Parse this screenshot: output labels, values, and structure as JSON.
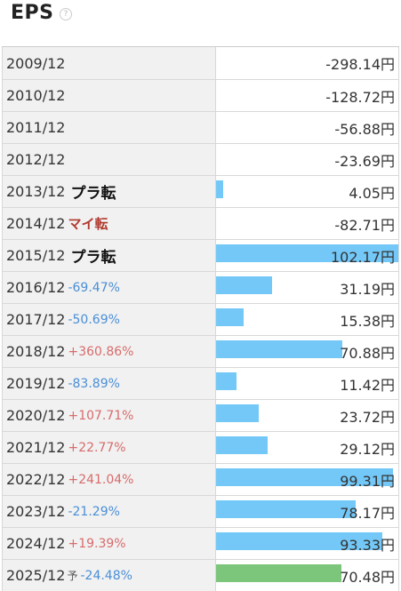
{
  "header": {
    "title": "EPS",
    "help": "?"
  },
  "rows": [
    {
      "year": "2009/12",
      "badge": "",
      "badge_type": "",
      "change": "",
      "change_type": "",
      "forecast": "",
      "value": "-298.14円",
      "eps": -298.14,
      "is_forecast": false
    },
    {
      "year": "2010/12",
      "badge": "",
      "badge_type": "",
      "change": "",
      "change_type": "",
      "forecast": "",
      "value": "-128.72円",
      "eps": -128.72,
      "is_forecast": false
    },
    {
      "year": "2011/12",
      "badge": "",
      "badge_type": "",
      "change": "",
      "change_type": "",
      "forecast": "",
      "value": "-56.88円",
      "eps": -56.88,
      "is_forecast": false
    },
    {
      "year": "2012/12",
      "badge": "",
      "badge_type": "",
      "change": "",
      "change_type": "",
      "forecast": "",
      "value": "-23.69円",
      "eps": -23.69,
      "is_forecast": false
    },
    {
      "year": "2013/12",
      "badge": "プラ転",
      "badge_type": "plus",
      "change": "",
      "change_type": "",
      "forecast": "",
      "value": "4.05円",
      "eps": 4.05,
      "is_forecast": false
    },
    {
      "year": "2014/12",
      "badge": "マイ転",
      "badge_type": "minus",
      "change": "",
      "change_type": "",
      "forecast": "",
      "value": "-82.71円",
      "eps": -82.71,
      "is_forecast": false
    },
    {
      "year": "2015/12",
      "badge": "プラ転",
      "badge_type": "plus",
      "change": "",
      "change_type": "",
      "forecast": "",
      "value": "102.17円",
      "eps": 102.17,
      "is_forecast": false
    },
    {
      "year": "2016/12",
      "badge": "",
      "badge_type": "",
      "change": "-69.47%",
      "change_type": "neg",
      "forecast": "",
      "value": "31.19円",
      "eps": 31.19,
      "is_forecast": false
    },
    {
      "year": "2017/12",
      "badge": "",
      "badge_type": "",
      "change": "-50.69%",
      "change_type": "neg",
      "forecast": "",
      "value": "15.38円",
      "eps": 15.38,
      "is_forecast": false
    },
    {
      "year": "2018/12",
      "badge": "",
      "badge_type": "",
      "change": "+360.86%",
      "change_type": "pos",
      "forecast": "",
      "value": "70.88円",
      "eps": 70.88,
      "is_forecast": false
    },
    {
      "year": "2019/12",
      "badge": "",
      "badge_type": "",
      "change": "-83.89%",
      "change_type": "neg",
      "forecast": "",
      "value": "11.42円",
      "eps": 11.42,
      "is_forecast": false
    },
    {
      "year": "2020/12",
      "badge": "",
      "badge_type": "",
      "change": "+107.71%",
      "change_type": "pos",
      "forecast": "",
      "value": "23.72円",
      "eps": 23.72,
      "is_forecast": false
    },
    {
      "year": "2021/12",
      "badge": "",
      "badge_type": "",
      "change": "+22.77%",
      "change_type": "pos",
      "forecast": "",
      "value": "29.12円",
      "eps": 29.12,
      "is_forecast": false
    },
    {
      "year": "2022/12",
      "badge": "",
      "badge_type": "",
      "change": "+241.04%",
      "change_type": "pos",
      "forecast": "",
      "value": "99.31円",
      "eps": 99.31,
      "is_forecast": false
    },
    {
      "year": "2023/12",
      "badge": "",
      "badge_type": "",
      "change": "-21.29%",
      "change_type": "neg",
      "forecast": "",
      "value": "78.17円",
      "eps": 78.17,
      "is_forecast": false
    },
    {
      "year": "2024/12",
      "badge": "",
      "badge_type": "",
      "change": "+19.39%",
      "change_type": "pos",
      "forecast": "",
      "value": "93.33円",
      "eps": 93.33,
      "is_forecast": false
    },
    {
      "year": "2025/12",
      "badge": "",
      "badge_type": "",
      "change": "-24.48%",
      "change_type": "neg",
      "forecast": "予",
      "value": "70.48円",
      "eps": 70.48,
      "is_forecast": true
    }
  ],
  "colors": {
    "bar": "#73c8f8",
    "forecast_bar": "#7cc67c",
    "positive_change": "#d86b6b",
    "negative_change": "#4a8fd6",
    "turn_negative": "#b03a2e"
  }
}
